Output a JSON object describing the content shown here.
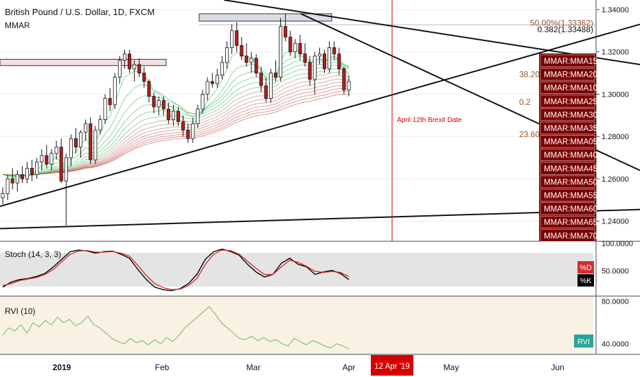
{
  "header": {
    "title": "British Pound / U.S. Dollar, 1D, FXCM",
    "indicator": "MMAR"
  },
  "colors": {
    "up_candle": "#ffffff",
    "down_candle": "#b71c1c",
    "mma_dark": "#7a0000",
    "fib_text": "#a0522d",
    "red_line": "#d50000",
    "stoch_k": "#000000",
    "stoch_d": "#d32f2f",
    "rvi_line": "#66bb6a",
    "rvi_bg": "#f8f1e4",
    "stoch_bg": "#e4e4e4",
    "rvi_badge": "#26a69a"
  },
  "annotations": {
    "brexit": "April 12th Brexit Date"
  },
  "fib_labels": [
    {
      "text": "50.00%(1.33362)",
      "price": 1.3336
    },
    {
      "text": "0.382(1.33488)",
      "price": 1.3305
    },
    {
      "text": "38.20",
      "price": 1.3093
    },
    {
      "text": "0.2",
      "price": 1.2963
    },
    {
      "text": "23.60",
      "price": 1.281
    }
  ],
  "mma_labels": [
    "MMAR:MMA15",
    "MMAR:MMA20",
    "MMAR:MMA10",
    "MMAR:MMA25",
    "MMAR:MMA30",
    "MMAR:MMA35",
    "MMAR:MMA05",
    "MMAR:MMA40",
    "MMAR:MMA45",
    "MMAR:MMA50",
    "MMAR:MMA55",
    "MMAR:MMA60",
    "MMAR:MMA65",
    "MMAR:MMA70"
  ],
  "x_axis": {
    "labels": [
      {
        "text": "2019",
        "bold": true
      },
      {
        "text": "Feb"
      },
      {
        "text": "Mar"
      },
      {
        "text": "Apr"
      },
      {
        "text": "May"
      },
      {
        "text": "Jun"
      }
    ],
    "highlight": "12 Apr '19"
  },
  "chart_data": [
    {
      "type": "candlestick",
      "title": "British Pound / U.S. Dollar, 1D, FXCM",
      "ylim": [
        1.2305,
        1.3445
      ],
      "y_ticks": [
        "1.34000",
        "1.32000",
        "1.30000",
        "1.28000",
        "1.26000",
        "1.24000"
      ],
      "candles": [
        {
          "o": 1.251,
          "h": 1.256,
          "l": 1.248,
          "c": 1.253
        },
        {
          "o": 1.253,
          "h": 1.262,
          "l": 1.25,
          "c": 1.26
        },
        {
          "o": 1.26,
          "h": 1.265,
          "l": 1.255,
          "c": 1.258
        },
        {
          "o": 1.258,
          "h": 1.264,
          "l": 1.254,
          "c": 1.262
        },
        {
          "o": 1.262,
          "h": 1.266,
          "l": 1.258,
          "c": 1.26
        },
        {
          "o": 1.26,
          "h": 1.268,
          "l": 1.258,
          "c": 1.265
        },
        {
          "o": 1.265,
          "h": 1.269,
          "l": 1.259,
          "c": 1.262
        },
        {
          "o": 1.262,
          "h": 1.27,
          "l": 1.26,
          "c": 1.268
        },
        {
          "o": 1.268,
          "h": 1.274,
          "l": 1.264,
          "c": 1.271
        },
        {
          "o": 1.271,
          "h": 1.276,
          "l": 1.265,
          "c": 1.267
        },
        {
          "o": 1.267,
          "h": 1.274,
          "l": 1.264,
          "c": 1.272
        },
        {
          "o": 1.272,
          "h": 1.278,
          "l": 1.269,
          "c": 1.275
        },
        {
          "o": 1.275,
          "h": 1.279,
          "l": 1.258,
          "c": 1.259
        },
        {
          "o": 1.259,
          "h": 1.272,
          "l": 1.238,
          "c": 1.27
        },
        {
          "o": 1.27,
          "h": 1.281,
          "l": 1.266,
          "c": 1.279
        },
        {
          "o": 1.279,
          "h": 1.284,
          "l": 1.272,
          "c": 1.275
        },
        {
          "o": 1.275,
          "h": 1.283,
          "l": 1.27,
          "c": 1.282
        },
        {
          "o": 1.282,
          "h": 1.288,
          "l": 1.278,
          "c": 1.286
        },
        {
          "o": 1.286,
          "h": 1.289,
          "l": 1.267,
          "c": 1.269
        },
        {
          "o": 1.269,
          "h": 1.285,
          "l": 1.267,
          "c": 1.283
        },
        {
          "o": 1.283,
          "h": 1.29,
          "l": 1.281,
          "c": 1.288
        },
        {
          "o": 1.288,
          "h": 1.3,
          "l": 1.286,
          "c": 1.298
        },
        {
          "o": 1.298,
          "h": 1.303,
          "l": 1.292,
          "c": 1.295
        },
        {
          "o": 1.295,
          "h": 1.31,
          "l": 1.293,
          "c": 1.308
        },
        {
          "o": 1.308,
          "h": 1.318,
          "l": 1.305,
          "c": 1.316
        },
        {
          "o": 1.316,
          "h": 1.321,
          "l": 1.312,
          "c": 1.319
        },
        {
          "o": 1.319,
          "h": 1.321,
          "l": 1.31,
          "c": 1.312
        },
        {
          "o": 1.312,
          "h": 1.316,
          "l": 1.306,
          "c": 1.314
        },
        {
          "o": 1.314,
          "h": 1.317,
          "l": 1.308,
          "c": 1.31
        },
        {
          "o": 1.31,
          "h": 1.313,
          "l": 1.303,
          "c": 1.306
        },
        {
          "o": 1.306,
          "h": 1.307,
          "l": 1.296,
          "c": 1.299
        },
        {
          "o": 1.299,
          "h": 1.301,
          "l": 1.291,
          "c": 1.294
        },
        {
          "o": 1.294,
          "h": 1.299,
          "l": 1.29,
          "c": 1.297
        },
        {
          "o": 1.297,
          "h": 1.299,
          "l": 1.29,
          "c": 1.293
        },
        {
          "o": 1.293,
          "h": 1.296,
          "l": 1.286,
          "c": 1.288
        },
        {
          "o": 1.288,
          "h": 1.295,
          "l": 1.285,
          "c": 1.292
        },
        {
          "o": 1.292,
          "h": 1.294,
          "l": 1.285,
          "c": 1.287
        },
        {
          "o": 1.287,
          "h": 1.29,
          "l": 1.28,
          "c": 1.283
        },
        {
          "o": 1.283,
          "h": 1.286,
          "l": 1.277,
          "c": 1.279
        },
        {
          "o": 1.279,
          "h": 1.289,
          "l": 1.277,
          "c": 1.286
        },
        {
          "o": 1.286,
          "h": 1.295,
          "l": 1.284,
          "c": 1.293
        },
        {
          "o": 1.293,
          "h": 1.302,
          "l": 1.291,
          "c": 1.3
        },
        {
          "o": 1.3,
          "h": 1.308,
          "l": 1.297,
          "c": 1.306
        },
        {
          "o": 1.306,
          "h": 1.31,
          "l": 1.303,
          "c": 1.305
        },
        {
          "o": 1.305,
          "h": 1.312,
          "l": 1.303,
          "c": 1.309
        },
        {
          "o": 1.309,
          "h": 1.318,
          "l": 1.307,
          "c": 1.315
        },
        {
          "o": 1.315,
          "h": 1.325,
          "l": 1.312,
          "c": 1.322
        },
        {
          "o": 1.322,
          "h": 1.333,
          "l": 1.319,
          "c": 1.33
        },
        {
          "o": 1.33,
          "h": 1.334,
          "l": 1.32,
          "c": 1.323
        },
        {
          "o": 1.323,
          "h": 1.327,
          "l": 1.316,
          "c": 1.318
        },
        {
          "o": 1.318,
          "h": 1.324,
          "l": 1.313,
          "c": 1.315
        },
        {
          "o": 1.315,
          "h": 1.32,
          "l": 1.31,
          "c": 1.317
        },
        {
          "o": 1.317,
          "h": 1.319,
          "l": 1.308,
          "c": 1.31
        },
        {
          "o": 1.31,
          "h": 1.313,
          "l": 1.301,
          "c": 1.304
        },
        {
          "o": 1.304,
          "h": 1.308,
          "l": 1.296,
          "c": 1.298
        },
        {
          "o": 1.298,
          "h": 1.312,
          "l": 1.296,
          "c": 1.31
        },
        {
          "o": 1.31,
          "h": 1.316,
          "l": 1.306,
          "c": 1.308
        },
        {
          "o": 1.308,
          "h": 1.336,
          "l": 1.306,
          "c": 1.332
        },
        {
          "o": 1.332,
          "h": 1.338,
          "l": 1.325,
          "c": 1.327
        },
        {
          "o": 1.327,
          "h": 1.33,
          "l": 1.318,
          "c": 1.32
        },
        {
          "o": 1.32,
          "h": 1.326,
          "l": 1.317,
          "c": 1.324
        },
        {
          "o": 1.324,
          "h": 1.328,
          "l": 1.316,
          "c": 1.319
        },
        {
          "o": 1.319,
          "h": 1.324,
          "l": 1.313,
          "c": 1.315
        },
        {
          "o": 1.315,
          "h": 1.318,
          "l": 1.304,
          "c": 1.307
        },
        {
          "o": 1.307,
          "h": 1.32,
          "l": 1.3,
          "c": 1.318
        },
        {
          "o": 1.318,
          "h": 1.322,
          "l": 1.314,
          "c": 1.319
        },
        {
          "o": 1.319,
          "h": 1.321,
          "l": 1.31,
          "c": 1.312
        },
        {
          "o": 1.312,
          "h": 1.325,
          "l": 1.31,
          "c": 1.322
        },
        {
          "o": 1.322,
          "h": 1.325,
          "l": 1.316,
          "c": 1.319
        },
        {
          "o": 1.319,
          "h": 1.322,
          "l": 1.309,
          "c": 1.312
        },
        {
          "o": 1.312,
          "h": 1.313,
          "l": 1.3,
          "c": 1.302
        },
        {
          "o": 1.302,
          "h": 1.309,
          "l": 1.299,
          "c": 1.306
        }
      ],
      "trendlines": [
        {
          "name": "ascending-support",
          "from": [
            0,
            1.247
          ],
          "to": [
            1.0,
            1.333
          ]
        },
        {
          "name": "upper-horizontal-resistance",
          "from": [
            0.35,
            1.3445
          ],
          "to": [
            1.0,
            1.314
          ]
        },
        {
          "name": "descending-channel",
          "from": [
            0.47,
            1.338
          ],
          "to": [
            1.0,
            1.264
          ]
        },
        {
          "name": "lower-base-line",
          "from": [
            0,
            1.2365
          ],
          "to": [
            1.0,
            1.2455
          ]
        }
      ],
      "zones": [
        {
          "price_low": 1.3135,
          "price_high": 1.3165,
          "label": ""
        },
        {
          "price_low": 1.3345,
          "price_high": 1.338,
          "label": ""
        }
      ]
    },
    {
      "type": "line",
      "title": "Stoch (14, 3, 3)",
      "ylim": [
        0,
        100
      ],
      "y_ticks": [
        "100.0000",
        "50.0000"
      ],
      "series": [
        {
          "name": "%K",
          "values": [
            15,
            25,
            30,
            32,
            36,
            42,
            55,
            70,
            85,
            88,
            86,
            82,
            85,
            86,
            80,
            72,
            50,
            30,
            15,
            10,
            8,
            12,
            22,
            40,
            70,
            85,
            90,
            85,
            78,
            60,
            45,
            35,
            40,
            62,
            72,
            60,
            55,
            40,
            45,
            48,
            42,
            30
          ]
        },
        {
          "name": "%D",
          "values": [
            18,
            22,
            28,
            31,
            34,
            40,
            50,
            65,
            80,
            86,
            87,
            84,
            84,
            85,
            82,
            76,
            58,
            38,
            22,
            14,
            10,
            11,
            18,
            32,
            60,
            80,
            88,
            87,
            80,
            66,
            52,
            40,
            40,
            55,
            68,
            64,
            56,
            46,
            44,
            46,
            44,
            36
          ]
        }
      ],
      "badges": [
        "%D",
        "%K"
      ]
    },
    {
      "type": "line",
      "title": "RVI (10)",
      "ylim": [
        30,
        85
      ],
      "y_ticks": [
        "80.0000",
        "40.0000"
      ],
      "series": [
        {
          "name": "RVI",
          "values": [
            48,
            55,
            52,
            58,
            50,
            60,
            56,
            62,
            58,
            65,
            60,
            63,
            57,
            60,
            66,
            58,
            55,
            50,
            45,
            42,
            40,
            45,
            41,
            43,
            39,
            44,
            40,
            46,
            42,
            48,
            55,
            60,
            65,
            70,
            75,
            68,
            60,
            55,
            50,
            45,
            44,
            47,
            43,
            46,
            42,
            44,
            40,
            38,
            45,
            42,
            39,
            43,
            41,
            38,
            36,
            40,
            38,
            35
          ]
        }
      ],
      "badges": [
        "RVI"
      ]
    }
  ]
}
